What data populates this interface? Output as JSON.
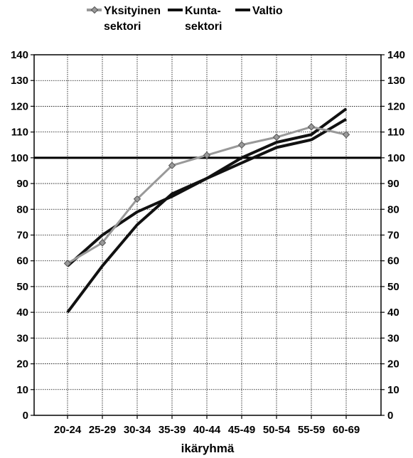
{
  "chart_data": {
    "type": "line",
    "xlabel": "ikäryhmä",
    "ylabel": "",
    "title": "",
    "categories": [
      "20-24",
      "25-29",
      "30-34",
      "35-39",
      "40-44",
      "45-49",
      "50-54",
      "55-59",
      "60-69"
    ],
    "ylim": [
      0,
      140
    ],
    "yticks": [
      0,
      10,
      20,
      30,
      40,
      50,
      60,
      70,
      80,
      90,
      100,
      110,
      120,
      130,
      140
    ],
    "grid": true,
    "legend_position": "top",
    "reference_line": 100,
    "series": [
      {
        "name_lines": [
          "Yksityinen",
          "sektori"
        ],
        "color": "#999999",
        "marker": "diamond",
        "values": [
          59,
          67,
          84,
          97,
          101,
          105,
          108,
          112,
          109
        ]
      },
      {
        "name_lines": [
          "Kunta-",
          "sektori"
        ],
        "color": "#111111",
        "marker": "none",
        "values": [
          58,
          70,
          79,
          85,
          92,
          100,
          106,
          109,
          119
        ]
      },
      {
        "name_lines": [
          "Valtio"
        ],
        "color": "#111111",
        "marker": "none",
        "values": [
          40,
          58,
          74,
          86,
          92,
          98,
          104,
          107,
          115
        ]
      }
    ]
  }
}
